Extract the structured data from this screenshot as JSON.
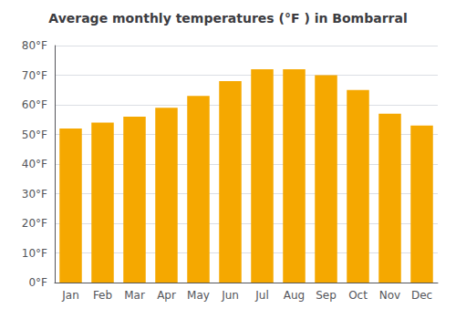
{
  "chart_data": {
    "type": "bar",
    "title": "Average monthly temperatures (°F ) in Bombarral",
    "categories": [
      "Jan",
      "Feb",
      "Mar",
      "Apr",
      "May",
      "Jun",
      "Jul",
      "Aug",
      "Sep",
      "Oct",
      "Nov",
      "Dec"
    ],
    "values": [
      52,
      54,
      56,
      59,
      63,
      68,
      72,
      72,
      70,
      65,
      57,
      53
    ],
    "color": "#F5A800",
    "ylim": [
      0,
      80
    ],
    "yticks": [
      {
        "value": 0,
        "label": "0°F"
      },
      {
        "value": 10,
        "label": "10°F"
      },
      {
        "value": 20,
        "label": "20°F"
      },
      {
        "value": 30,
        "label": "30°F"
      },
      {
        "value": 40,
        "label": "40°F"
      },
      {
        "value": 50,
        "label": "50°F"
      },
      {
        "value": 60,
        "label": "60°F"
      },
      {
        "value": 70,
        "label": "70°F"
      },
      {
        "value": 80,
        "label": "80°F"
      }
    ],
    "grid": true
  }
}
